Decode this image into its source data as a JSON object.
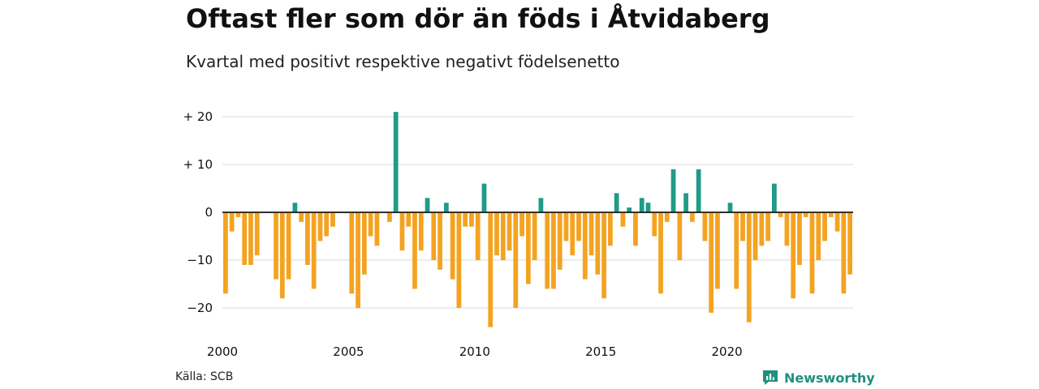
{
  "chart_data": {
    "type": "bar",
    "title": "Oftast fler som dör än föds i Åtvidaberg",
    "subtitle": "Kvartal med positivt respektive negativt födelsenetto",
    "ylim": [
      -24,
      21
    ],
    "yticks": [
      {
        "value": 20,
        "label": "+ 20"
      },
      {
        "value": 10,
        "label": "+ 10"
      },
      {
        "value": 0,
        "label": "0"
      },
      {
        "value": -10,
        "label": "−10"
      },
      {
        "value": -20,
        "label": "−20"
      }
    ],
    "xticks": [
      {
        "value": 2000,
        "label": "2000"
      },
      {
        "value": 2005,
        "label": "2005"
      },
      {
        "value": 2010,
        "label": "2010"
      },
      {
        "value": 2015,
        "label": "2015"
      },
      {
        "value": 2020,
        "label": "2020"
      }
    ],
    "grid": true,
    "colors": {
      "positive": "#1f9b87",
      "negative": "#f4a321",
      "grid": "#d9d9d9",
      "axis": "#111111"
    },
    "categories": [
      "2000 Q1",
      "2000 Q2",
      "2000 Q3",
      "2000 Q4",
      "2001 Q1",
      "2001 Q2",
      "2001 Q3",
      "2001 Q4",
      "2002 Q1",
      "2002 Q2",
      "2002 Q3",
      "2002 Q4",
      "2003 Q1",
      "2003 Q2",
      "2003 Q3",
      "2003 Q4",
      "2004 Q1",
      "2004 Q2",
      "2004 Q3",
      "2004 Q4",
      "2005 Q1",
      "2005 Q2",
      "2005 Q3",
      "2005 Q4",
      "2006 Q1",
      "2006 Q2",
      "2006 Q3",
      "2006 Q4",
      "2007 Q1",
      "2007 Q2",
      "2007 Q3",
      "2007 Q4",
      "2008 Q1",
      "2008 Q2",
      "2008 Q3",
      "2008 Q4",
      "2009 Q1",
      "2009 Q2",
      "2009 Q3",
      "2009 Q4",
      "2010 Q1",
      "2010 Q2",
      "2010 Q3",
      "2010 Q4",
      "2011 Q1",
      "2011 Q2",
      "2011 Q3",
      "2011 Q4",
      "2012 Q1",
      "2012 Q2",
      "2012 Q3",
      "2012 Q4",
      "2013 Q1",
      "2013 Q2",
      "2013 Q3",
      "2013 Q4",
      "2014 Q1",
      "2014 Q2",
      "2014 Q3",
      "2014 Q4",
      "2015 Q1",
      "2015 Q2",
      "2015 Q3",
      "2015 Q4",
      "2016 Q1",
      "2016 Q2",
      "2016 Q3",
      "2016 Q4",
      "2017 Q1",
      "2017 Q2",
      "2017 Q3",
      "2017 Q4",
      "2018 Q1",
      "2018 Q2",
      "2018 Q3",
      "2018 Q4",
      "2019 Q1",
      "2019 Q2",
      "2019 Q3",
      "2019 Q4",
      "2020 Q1",
      "2020 Q2",
      "2020 Q3",
      "2020 Q4",
      "2021 Q1",
      "2021 Q2",
      "2021 Q3",
      "2021 Q4",
      "2022 Q1",
      "2022 Q2",
      "2022 Q3",
      "2022 Q4",
      "2023 Q1",
      "2023 Q2",
      "2023 Q3",
      "2023 Q4",
      "2024 Q1",
      "2024 Q2",
      "2024 Q3",
      "2024 Q4"
    ],
    "values": [
      -17,
      -4,
      -1,
      -11,
      -11,
      -9,
      0,
      0,
      -14,
      -18,
      -14,
      2,
      -2,
      -11,
      -16,
      -6,
      -5,
      -3,
      0,
      0,
      -17,
      -20,
      -13,
      -5,
      -7,
      0,
      -2,
      21,
      -8,
      -3,
      -16,
      -8,
      3,
      -10,
      -12,
      2,
      -14,
      -20,
      -3,
      -3,
      -10,
      6,
      -24,
      -9,
      -10,
      -8,
      -20,
      -5,
      -15,
      -10,
      3,
      -16,
      -16,
      -12,
      -6,
      -9,
      -6,
      -14,
      -9,
      -13,
      -18,
      -7,
      4,
      -3,
      1,
      -7,
      3,
      2,
      -5,
      -17,
      -2,
      9,
      -10,
      4,
      -2,
      9,
      -6,
      -21,
      -16,
      0,
      2,
      -16,
      -6,
      -23,
      -10,
      -7,
      -6,
      6,
      -1,
      -7,
      -18,
      -11,
      -1,
      -17,
      -10,
      -6,
      -1,
      -4,
      -17,
      -13
    ]
  },
  "footer": {
    "source": "Källa: SCB",
    "brand": "Newsworthy",
    "brand_icon": "newsworthy-logo-icon"
  }
}
